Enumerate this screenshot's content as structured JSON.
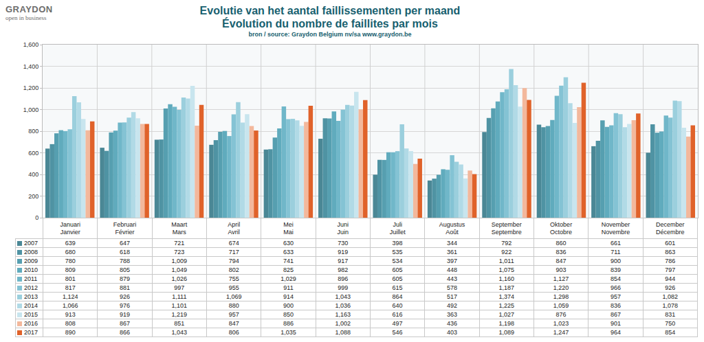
{
  "chart_data": {
    "type": "bar",
    "logo": "GRAYDON",
    "logo_tagline": "open in business",
    "title": [
      "Evolutie van het aantal faillissementen per maand",
      "Évolution du nombre de faillites par mois"
    ],
    "subtitle": "bron / source: Graydon Belgium nv/sa    www.graydon.be",
    "categories": [
      "Januari\nJanvier",
      "Februari\nFévrier",
      "Maart\nMars",
      "April\nAvril",
      "Mei\nMai",
      "Juni\nJuin",
      "Juli\nJuillet",
      "Augustus\nAoût",
      "September\nSeptembre",
      "Oktober\nOctobre",
      "November\nNovembre",
      "December\nDécembre"
    ],
    "series": [
      {
        "name": "2007",
        "color": "#4a8795",
        "values": [
          639,
          647,
          721,
          674,
          630,
          730,
          398,
          344,
          792,
          860,
          661,
          601
        ],
        "value_labels": [
          "639",
          "647",
          "721",
          "674",
          "630",
          "730",
          "398",
          "344",
          "792",
          "860",
          "661",
          "601"
        ]
      },
      {
        "name": "2008",
        "color": "#4f93a3",
        "values": [
          680,
          618,
          723,
          717,
          633,
          919,
          535,
          361,
          922,
          836,
          711,
          863
        ],
        "value_labels": [
          "680",
          "618",
          "723",
          "717",
          "633",
          "919",
          "535",
          "361",
          "922",
          "836",
          "711",
          "863"
        ]
      },
      {
        "name": "2009",
        "color": "#569fb0",
        "values": [
          780,
          788,
          1009,
          794,
          741,
          917,
          534,
          397,
          1011,
          847,
          900,
          786
        ],
        "value_labels": [
          "780",
          "788",
          "1,009",
          "794",
          "741",
          "917",
          "534",
          "397",
          "1,011",
          "847",
          "900",
          "786"
        ]
      },
      {
        "name": "2010",
        "color": "#60abbd",
        "values": [
          809,
          805,
          1049,
          802,
          825,
          982,
          605,
          448,
          1075,
          903,
          839,
          797
        ],
        "value_labels": [
          "809",
          "805",
          "1,049",
          "802",
          "825",
          "982",
          "605",
          "448",
          "1,075",
          "903",
          "839",
          "797"
        ]
      },
      {
        "name": "2011",
        "color": "#70b7c9",
        "values": [
          801,
          879,
          1026,
          755,
          1029,
          896,
          605,
          443,
          1160,
          1127,
          854,
          944
        ],
        "value_labels": [
          "801",
          "879",
          "1,026",
          "755",
          "1,029",
          "896",
          "605",
          "443",
          "1,160",
          "1,127",
          "854",
          "944"
        ]
      },
      {
        "name": "2012",
        "color": "#84c3d4",
        "values": [
          817,
          881,
          997,
          955,
          911,
          999,
          615,
          578,
          1187,
          1220,
          966,
          926
        ],
        "value_labels": [
          "817",
          "881",
          "997",
          "955",
          "911",
          "999",
          "615",
          "578",
          "1,187",
          "1,220",
          "966",
          "926"
        ]
      },
      {
        "name": "2013",
        "color": "#9bcfdd",
        "values": [
          1124,
          926,
          1111,
          1069,
          914,
          1043,
          864,
          517,
          1374,
          1298,
          957,
          1082
        ],
        "value_labels": [
          "1,124",
          "926",
          "1,111",
          "1,069",
          "914",
          "1,043",
          "864",
          "517",
          "1,374",
          "1,298",
          "957",
          "1,082"
        ]
      },
      {
        "name": "2014",
        "color": "#b1dae6",
        "values": [
          1066,
          976,
          1101,
          880,
          900,
          1036,
          640,
          492,
          1225,
          1059,
          836,
          1078
        ],
        "value_labels": [
          "1,066",
          "976",
          "1,101",
          "880",
          "900",
          "1,036",
          "640",
          "492",
          "1,225",
          "1,059",
          "836",
          "1,078"
        ]
      },
      {
        "name": "2015",
        "color": "#c8e5ee",
        "values": [
          913,
          919,
          1219,
          957,
          850,
          1163,
          616,
          363,
          1027,
          876,
          867,
          831
        ],
        "value_labels": [
          "913",
          "919",
          "1,219",
          "957",
          "850",
          "1,163",
          "616",
          "363",
          "1,027",
          "876",
          "867",
          "831"
        ]
      },
      {
        "name": "2016",
        "color": "#f3b89c",
        "values": [
          808,
          867,
          851,
          847,
          886,
          1002,
          497,
          436,
          1198,
          1023,
          901,
          750
        ],
        "value_labels": [
          "808",
          "867",
          "851",
          "847",
          "886",
          "1,002",
          "497",
          "436",
          "1,198",
          "1,023",
          "901",
          "750"
        ]
      },
      {
        "name": "2017",
        "color": "#e0622a",
        "values": [
          890,
          866,
          1043,
          806,
          1035,
          1088,
          546,
          403,
          1089,
          1247,
          964,
          854
        ],
        "value_labels": [
          "890",
          "866",
          "1,043",
          "806",
          "1,035",
          "1,088",
          "546",
          "403",
          "1,089",
          "1,247",
          "964",
          "854"
        ]
      }
    ],
    "ylim": [
      0,
      1600
    ],
    "yticks": [
      0,
      200,
      400,
      600,
      800,
      {
        "value": 1000,
        "label": "1,000"
      },
      {
        "value": 1200,
        "label": "1,200"
      },
      {
        "value": 1400,
        "label": "1,400"
      },
      {
        "value": 1600,
        "label": "1,600"
      }
    ],
    "grid": true,
    "tick_labels": "y"
  }
}
